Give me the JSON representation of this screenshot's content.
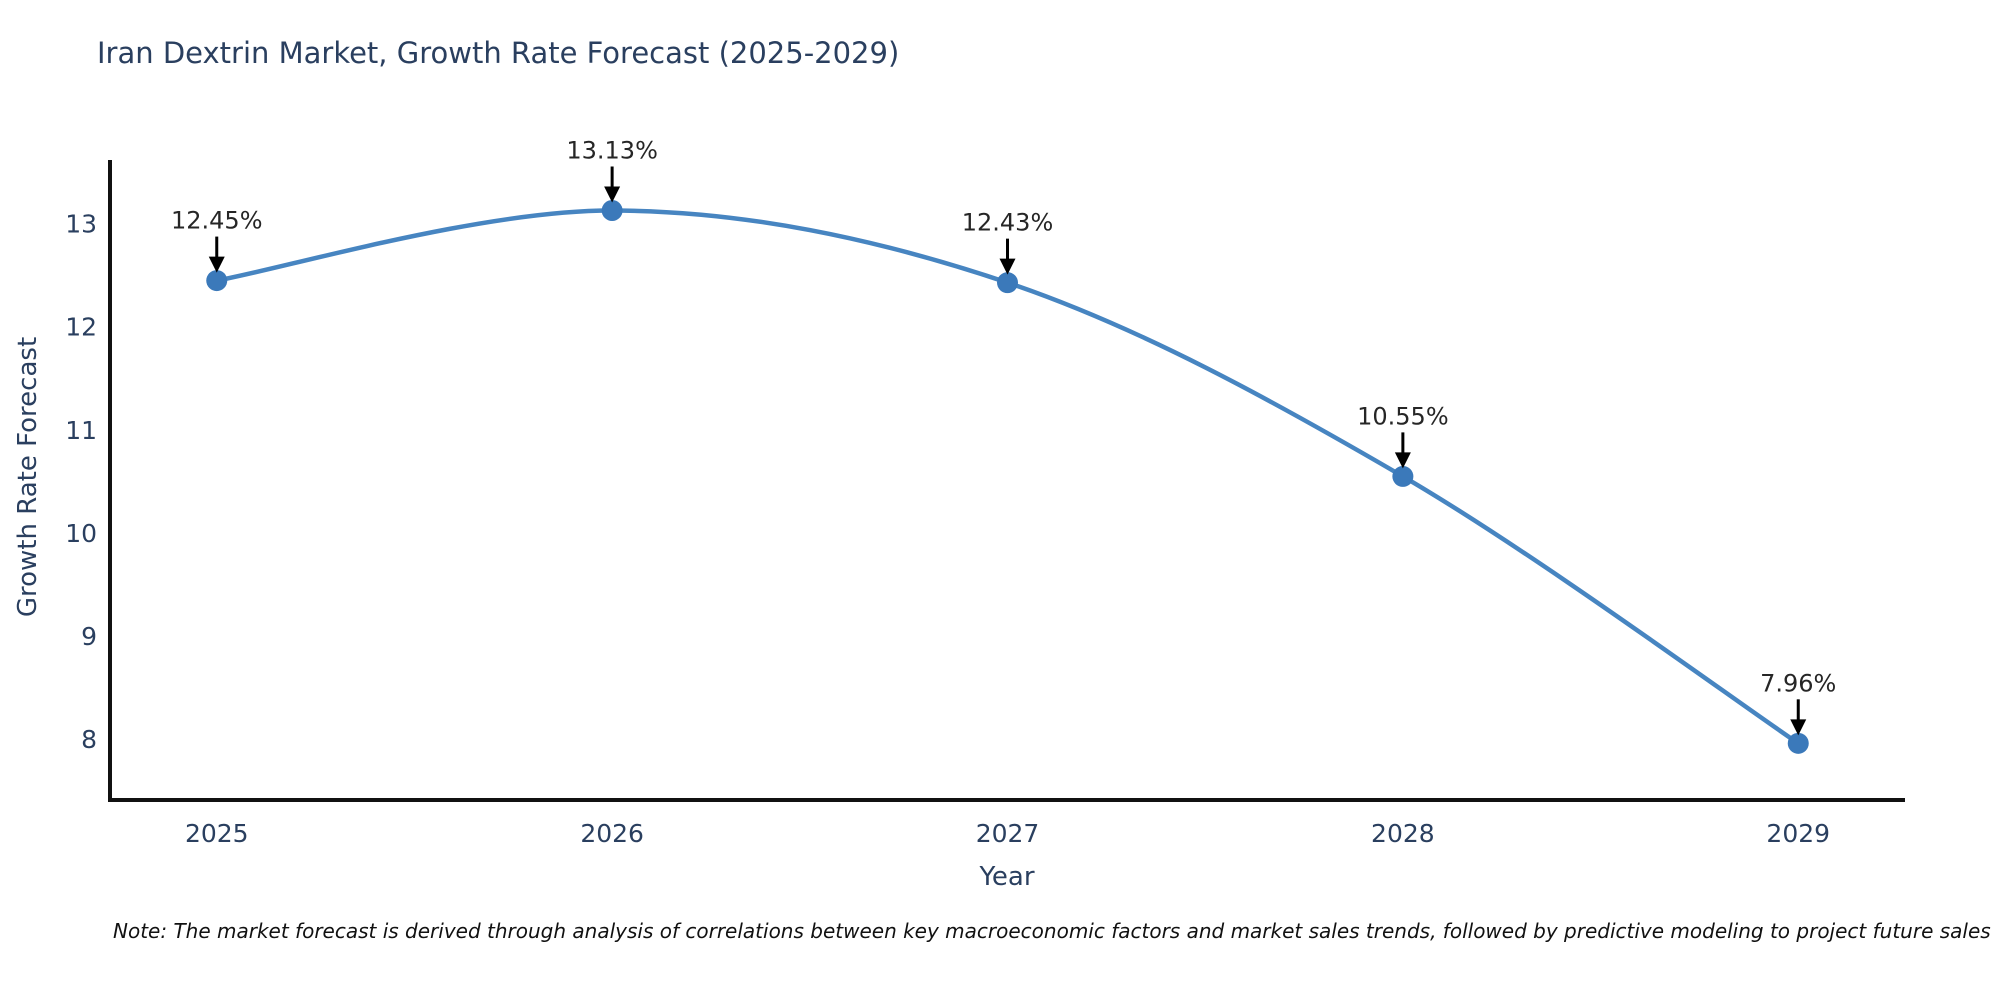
{
  "title": {
    "text": "Iran Dextrin Market, Growth Rate Forecast (2025-2029)"
  },
  "note": {
    "text": "Note: The market forecast is derived through analysis of correlations between key macroeconomic factors and market sales trends, followed by predictive modeling to project future sales"
  },
  "chart_data": {
    "type": "line",
    "title": "Iran Dextrin Market, Growth Rate Forecast (2025-2029)",
    "xlabel": "Year",
    "ylabel": "Growth Rate Forecast",
    "categories": [
      "2025",
      "2026",
      "2027",
      "2028",
      "2029"
    ],
    "values": [
      12.45,
      13.13,
      12.43,
      10.55,
      7.96
    ],
    "point_labels": [
      "12.45%",
      "13.13%",
      "12.43%",
      "10.55%",
      "7.96%"
    ],
    "yticks": [
      8,
      9,
      10,
      11,
      12,
      13
    ],
    "ylim": [
      7.41,
      13.62
    ],
    "xlim": [
      -0.27,
      4.27
    ],
    "grid": false,
    "legend_position": "none",
    "line_shape": "spline",
    "colors": {
      "line": "#4785c1",
      "marker": "#3b79ba",
      "axis": "#111111",
      "tick_text": "#2a3f5f",
      "annotation_text": "#262626",
      "arrow": "#000000",
      "background": "#ffffff"
    }
  }
}
